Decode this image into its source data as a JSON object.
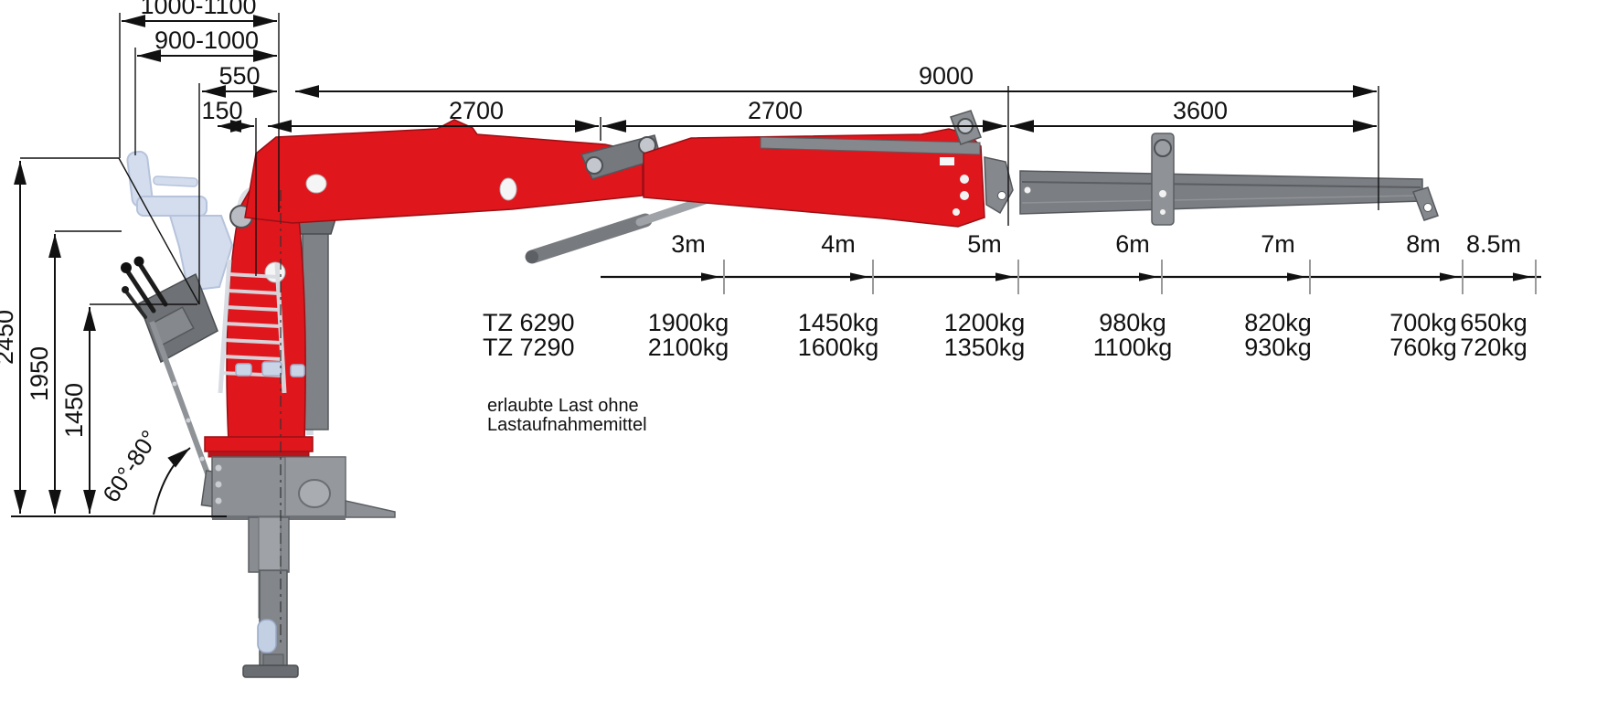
{
  "dims_top": {
    "d1": "1000-1100",
    "d2": "900-1000",
    "d3": "550",
    "d4": "150",
    "d5": "9000",
    "d6": "2700",
    "d7": "2700",
    "d8": "3600"
  },
  "dims_left": {
    "v1": "2450",
    "v2": "1950",
    "v3": "1450"
  },
  "angle_label": "60°-80°",
  "load_table": {
    "distances": [
      "3m",
      "4m",
      "5m",
      "6m",
      "7m",
      "8m",
      "8.5m"
    ],
    "rows": [
      {
        "model": "TZ 6290",
        "loads": [
          "1900kg",
          "1450kg",
          "1200kg",
          "980kg",
          "820kg",
          "700kg",
          "650kg"
        ]
      },
      {
        "model": "TZ 7290",
        "loads": [
          "2100kg",
          "1600kg",
          "1350kg",
          "1100kg",
          "930kg",
          "760kg",
          "720kg"
        ]
      }
    ],
    "note": [
      "erlaubte Last ohne",
      "Lastaufnahmemittel"
    ]
  },
  "chart_data": {
    "type": "table",
    "columns_outreach_m": [
      3,
      4,
      5,
      6,
      7,
      8,
      8.5
    ],
    "series": [
      {
        "name": "TZ 6290",
        "values_kg": [
          1900,
          1450,
          1200,
          980,
          820,
          700,
          650
        ]
      },
      {
        "name": "TZ 7290",
        "values_kg": [
          2100,
          1600,
          1350,
          1100,
          930,
          760,
          720
        ]
      }
    ],
    "note": "erlaubte Last ohne Lastaufnahmemittel"
  },
  "colors": {
    "crane_red": "#e0161d",
    "boom_gray": "#7b7e82",
    "seat_blue": "#cdd8ea",
    "fittings_blue": "#c9d4e6",
    "line_black": "#111111",
    "tick_gray": "#9a9a9a"
  }
}
